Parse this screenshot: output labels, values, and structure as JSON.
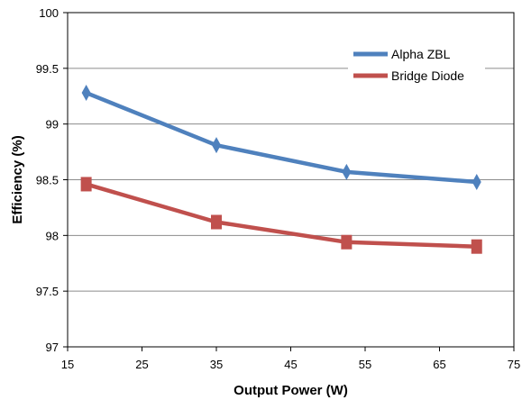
{
  "chart_data": {
    "type": "line",
    "title": "",
    "xlabel": "Output Power (W)",
    "ylabel": "Efficiency (%)",
    "xlim": [
      15,
      75
    ],
    "ylim": [
      97,
      100
    ],
    "x_ticks": [
      15,
      25,
      35,
      45,
      55,
      65,
      75
    ],
    "y_ticks": [
      97,
      97.5,
      98,
      98.5,
      99,
      99.5,
      100
    ],
    "grid": "horizontal",
    "legend_position": "top-right",
    "series": [
      {
        "name": "Alpha ZBL",
        "color": "#4F81BD",
        "marker": "diamond",
        "x": [
          17.5,
          35,
          52.5,
          70
        ],
        "y": [
          99.28,
          98.81,
          98.57,
          98.48
        ]
      },
      {
        "name": "Bridge Diode",
        "color": "#C0504D",
        "marker": "square",
        "x": [
          17.5,
          35,
          52.5,
          70
        ],
        "y": [
          98.46,
          98.12,
          97.94,
          97.9
        ]
      }
    ]
  }
}
